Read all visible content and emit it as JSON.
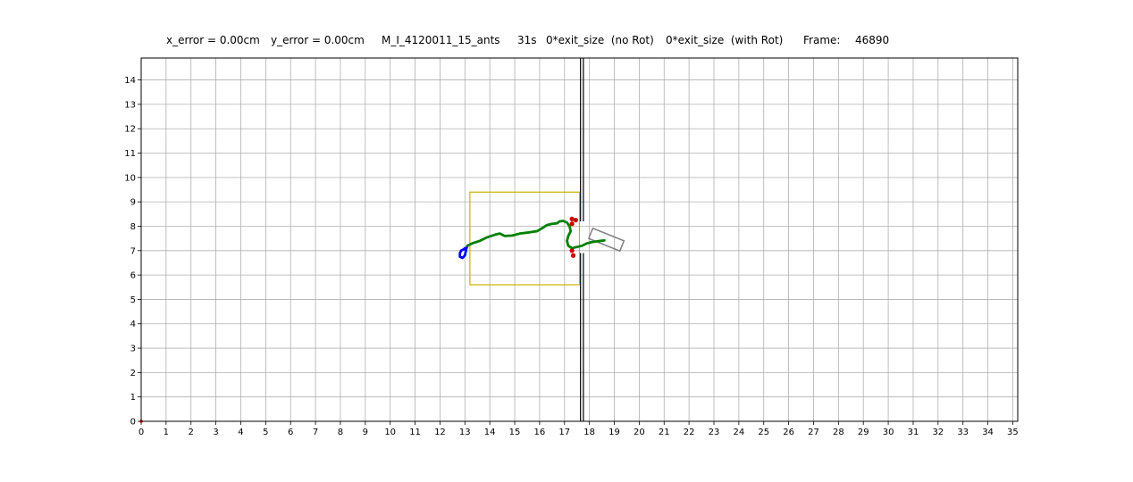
{
  "header": {
    "x_error": "x_error = 0.00cm",
    "y_error": "y_error = 0.00cm",
    "experiment": "M_I_4120011_15_ants",
    "time": "31s",
    "exit_no_rot": "0*exit_size  (no Rot)",
    "exit_with_rot": "0*exit_size  (with Rot)",
    "frame_label": "Frame:",
    "frame_value": "46890"
  },
  "chart_data": {
    "type": "line",
    "xlim": [
      0,
      35.2
    ],
    "ylim": [
      0,
      14.9
    ],
    "grid": true,
    "x_ticks": [
      0,
      1,
      2,
      3,
      4,
      5,
      6,
      7,
      8,
      9,
      10,
      11,
      12,
      13,
      14,
      15,
      16,
      17,
      18,
      19,
      20,
      21,
      22,
      23,
      24,
      25,
      26,
      27,
      28,
      29,
      30,
      31,
      32,
      33,
      34,
      35
    ],
    "y_ticks": [
      0,
      1,
      2,
      3,
      4,
      5,
      6,
      7,
      8,
      9,
      10,
      11,
      12,
      13,
      14
    ],
    "colors": {
      "blue_trajectory": "#0000ff",
      "green_trajectory": "#008000",
      "red_markers": "#cc0000",
      "region_box": "#c8b400",
      "load_box": "#808080",
      "wall": "#000000",
      "grid": "#b0b0b0"
    },
    "region_box": {
      "x0": 13.2,
      "x1": 17.6,
      "y0": 5.6,
      "y1": 9.4
    },
    "wall": {
      "x": 17.7,
      "gap": [
        6.9,
        8.2
      ]
    },
    "load": {
      "center": [
        18.68,
        7.45
      ],
      "width": 1.35,
      "height": 0.45,
      "angle_deg": -22
    },
    "series": [
      {
        "x": [
          13.0,
          12.95,
          12.85,
          12.8,
          12.8,
          12.9,
          13.0,
          13.05,
          13.1
        ],
        "y": [
          7.1,
          7.05,
          7.0,
          6.9,
          6.75,
          6.7,
          6.8,
          7.05,
          7.2
        ]
      },
      {
        "x": [
          13.1,
          13.3,
          13.6,
          13.9,
          14.2,
          14.4,
          14.6,
          14.9,
          15.2,
          15.6,
          15.9,
          16.1,
          16.3,
          16.5,
          16.7,
          16.8,
          16.95,
          17.1,
          17.2,
          17.25,
          17.15,
          17.1,
          17.15,
          17.3,
          17.5,
          17.7,
          17.9,
          18.1,
          18.3,
          18.6
        ],
        "y": [
          7.2,
          7.3,
          7.4,
          7.55,
          7.65,
          7.7,
          7.6,
          7.62,
          7.7,
          7.75,
          7.8,
          7.92,
          8.05,
          8.1,
          8.12,
          8.2,
          8.22,
          8.15,
          8.0,
          7.8,
          7.6,
          7.4,
          7.2,
          7.1,
          7.15,
          7.2,
          7.3,
          7.35,
          7.38,
          7.42
        ]
      }
    ],
    "markers": [
      {
        "x": 17.3,
        "y": 8.3
      },
      {
        "x": 17.45,
        "y": 8.25
      },
      {
        "x": 17.3,
        "y": 8.1
      },
      {
        "x": 17.3,
        "y": 7.0
      },
      {
        "x": 17.35,
        "y": 6.8
      }
    ],
    "origin_marker": {
      "x": 0,
      "y": 0
    }
  }
}
